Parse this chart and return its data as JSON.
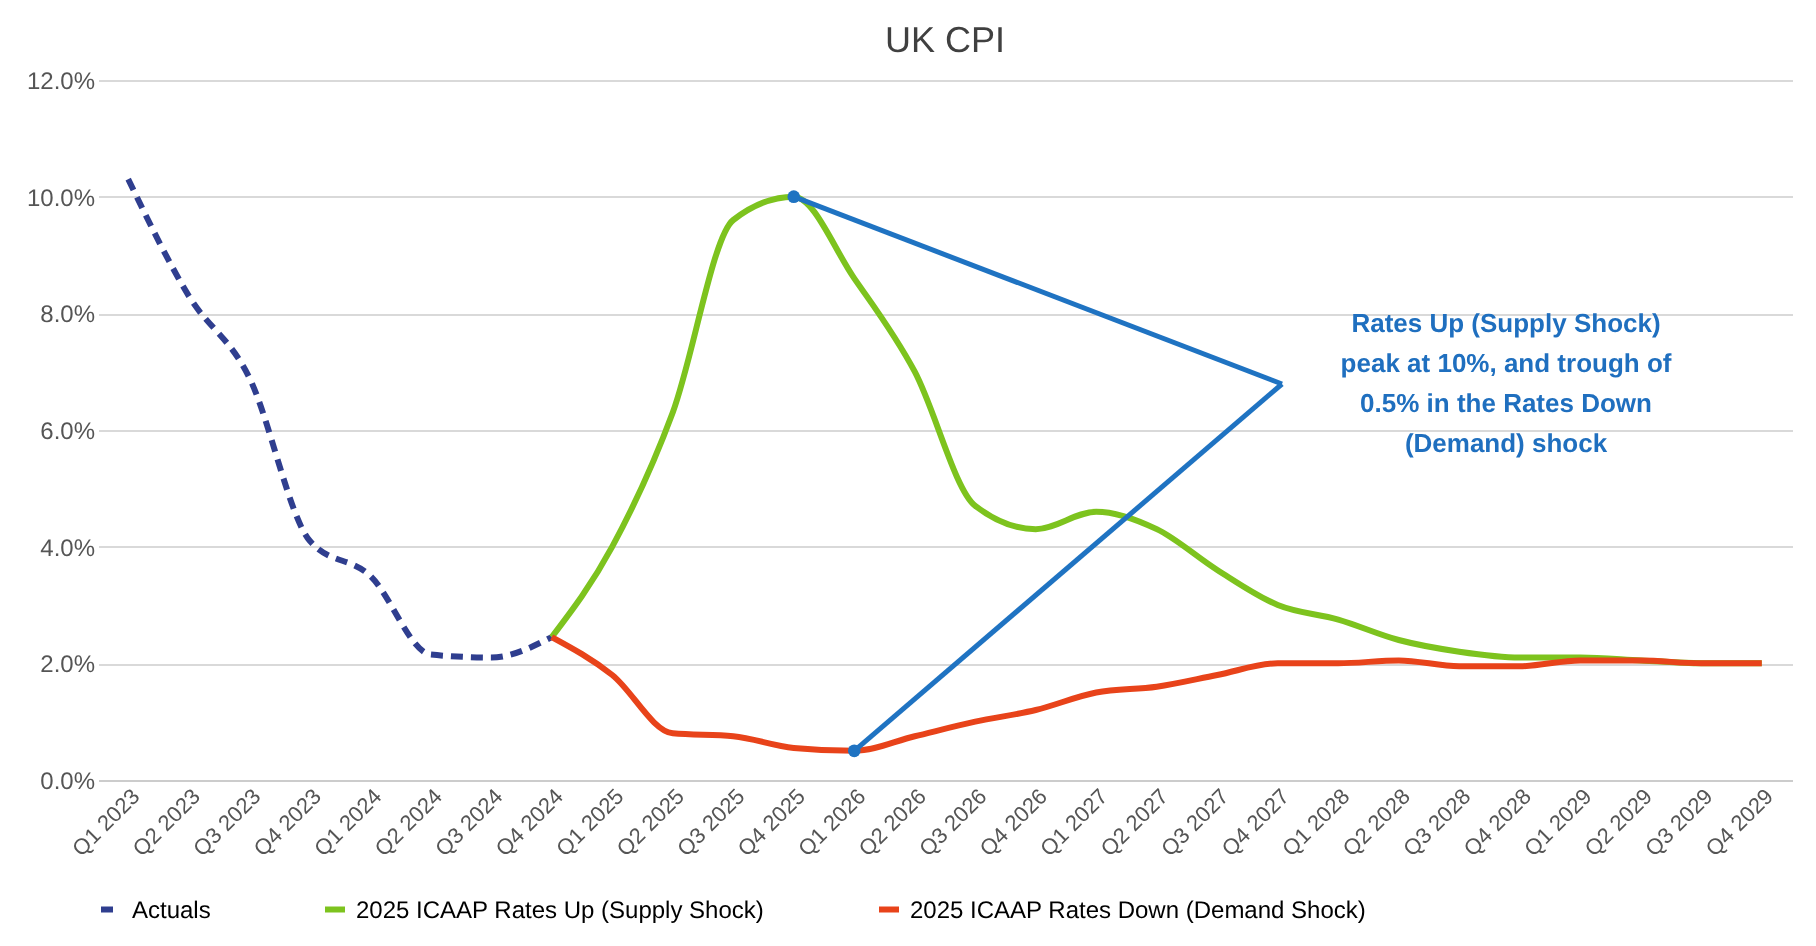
{
  "chart_data": {
    "type": "line",
    "title": "UK CPI",
    "categories": [
      "Q1 2023",
      "Q2 2023",
      "Q3 2023",
      "Q4 2023",
      "Q1 2024",
      "Q2 2024",
      "Q3 2024",
      "Q4 2024",
      "Q1 2025",
      "Q2 2025",
      "Q3 2025",
      "Q4 2025",
      "Q1 2026",
      "Q2 2026",
      "Q3 2026",
      "Q4 2026",
      "Q1 2027",
      "Q2 2027",
      "Q3 2027",
      "Q4 2027",
      "Q1 2028",
      "Q2 2028",
      "Q3 2028",
      "Q4 2028",
      "Q1 2029",
      "Q2 2029",
      "Q3 2029",
      "Q4 2029"
    ],
    "series": [
      {
        "name": "Actuals",
        "color": "#2f3e8f",
        "line_style": "dashed",
        "values": [
          10.3,
          8.3,
          6.9,
          4.1,
          3.5,
          2.15,
          2.1,
          2.45,
          null,
          null,
          null,
          null,
          null,
          null,
          null,
          null,
          null,
          null,
          null,
          null,
          null,
          null,
          null,
          null,
          null,
          null,
          null,
          null
        ]
      },
      {
        "name": "2025 ICAAP Rates Up (Supply Shock)",
        "color": "#7dc31e",
        "line_style": "solid",
        "values": [
          null,
          null,
          null,
          null,
          null,
          null,
          null,
          2.45,
          4.0,
          6.3,
          9.6,
          10.0,
          8.6,
          7.0,
          4.7,
          4.3,
          4.6,
          4.3,
          3.6,
          3.0,
          2.75,
          2.4,
          2.2,
          2.1,
          2.1,
          2.05,
          2.0,
          2.0
        ]
      },
      {
        "name": "2025 ICAAP Rates Down (Demand Shock)",
        "color": "#e8431a",
        "line_style": "solid",
        "values": [
          null,
          null,
          null,
          null,
          null,
          null,
          null,
          2.45,
          1.8,
          0.8,
          0.75,
          0.55,
          0.5,
          0.75,
          1.0,
          1.2,
          1.5,
          1.6,
          1.8,
          2.0,
          2.0,
          2.05,
          1.95,
          1.95,
          2.05,
          2.05,
          2.0,
          2.0
        ]
      }
    ],
    "ylim": [
      0,
      12
    ],
    "yticks": [
      {
        "value": 0,
        "label": "0.0%"
      },
      {
        "value": 2,
        "label": "2.0%"
      },
      {
        "value": 4,
        "label": "4.0%"
      },
      {
        "value": 6,
        "label": "6.0%"
      },
      {
        "value": 8,
        "label": "8.0%"
      },
      {
        "value": 10,
        "label": "10.0%"
      },
      {
        "value": 12,
        "label": "12.0%"
      }
    ],
    "grid": "y",
    "legend": "bottom",
    "marker": "none",
    "annotations": [
      "Rates Up (Supply Shock) peak at 10%, and trough of 0.5% in the Rates Down (Demand) shock"
    ]
  }
}
